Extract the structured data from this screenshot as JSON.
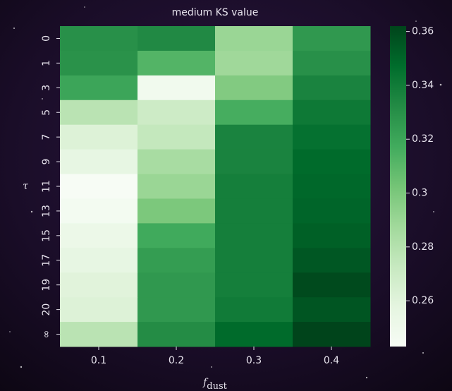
{
  "chart_data": {
    "type": "heatmap",
    "title": "medium KS value",
    "xlabel": "f",
    "xlabel_sub": "dust",
    "ylabel": "τ",
    "x_categories": [
      "0.1",
      "0.2",
      "0.3",
      "0.4"
    ],
    "y_categories": [
      "0",
      "1",
      "3",
      "5",
      "7",
      "9",
      "11",
      "13",
      "15",
      "17",
      "19",
      "20",
      "∞"
    ],
    "values": [
      [
        0.33,
        0.333,
        0.29,
        0.326
      ],
      [
        0.329,
        0.312,
        0.288,
        0.33
      ],
      [
        0.32,
        0.248,
        0.298,
        0.336
      ],
      [
        0.278,
        0.27,
        0.316,
        0.341
      ],
      [
        0.262,
        0.274,
        0.336,
        0.345
      ],
      [
        0.256,
        0.285,
        0.336,
        0.348
      ],
      [
        0.243,
        0.29,
        0.338,
        0.349
      ],
      [
        0.246,
        0.3,
        0.338,
        0.35
      ],
      [
        0.252,
        0.318,
        0.338,
        0.352
      ],
      [
        0.256,
        0.324,
        0.338,
        0.355
      ],
      [
        0.26,
        0.326,
        0.338,
        0.36
      ],
      [
        0.262,
        0.326,
        0.34,
        0.356
      ],
      [
        0.278,
        0.332,
        0.348,
        0.362
      ]
    ],
    "colormap": [
      "#f7fcf5",
      "#e5f5e0",
      "#c7e9c0",
      "#a1d99b",
      "#74c476",
      "#41ab5d",
      "#238b45",
      "#006d2c",
      "#00441b"
    ],
    "zlim": [
      0.243,
      0.362
    ],
    "zticks": [
      0.26,
      0.28,
      0.3,
      0.32,
      0.34,
      0.36
    ]
  }
}
